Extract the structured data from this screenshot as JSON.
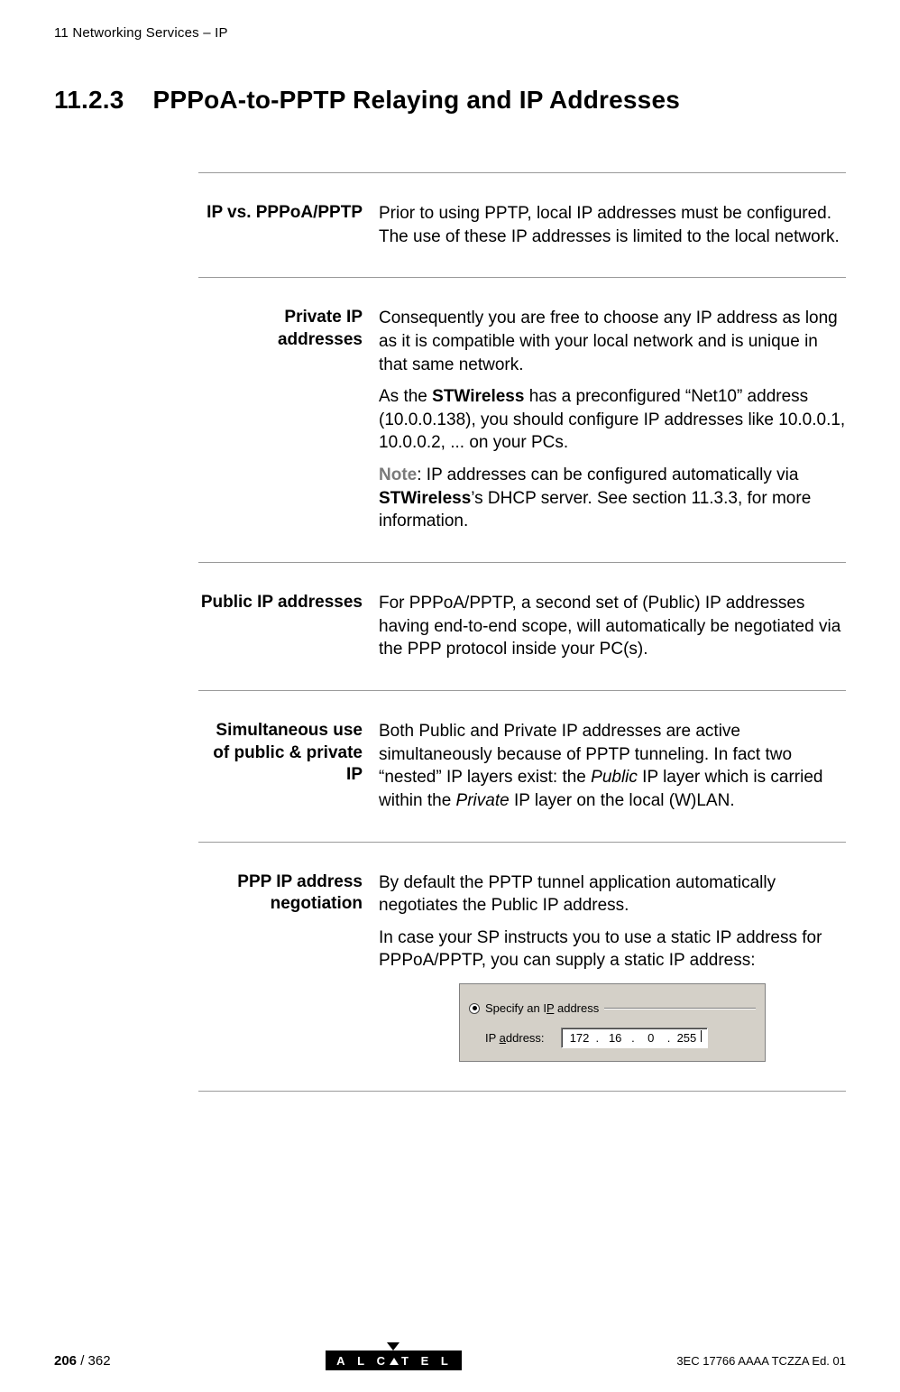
{
  "running_head": "11 Networking Services – IP",
  "heading": {
    "number": "11.2.3",
    "title": "PPPoA-to-PPTP Relaying and IP Addresses"
  },
  "blocks": [
    {
      "label": "IP vs. PPPoA/PPTP",
      "paras": [
        {
          "runs": [
            {
              "t": "Prior to using PPTP, local IP addresses must be configured. The use of these IP addresses is limited to the local network."
            }
          ]
        }
      ]
    },
    {
      "label": "Private IP addresses",
      "paras": [
        {
          "runs": [
            {
              "t": "Consequently you are free to choose any IP address as long as it is compatible with your local network and is unique in that same network."
            }
          ]
        },
        {
          "runs": [
            {
              "t": "As the "
            },
            {
              "t": "STWireless",
              "bold": true
            },
            {
              "t": " has a preconfigured “Net10” address (10.0.0.138), you should configure IP addresses like 10.0.0.1, 10.0.0.2, ... on your PCs."
            }
          ]
        },
        {
          "runs": [
            {
              "t": "Note",
              "note": true
            },
            {
              "t": ": IP addresses can be configured automatically via "
            },
            {
              "t": "STWireless",
              "bold": true
            },
            {
              "t": "’s DHCP server. See section 11.3.3, for more information."
            }
          ]
        }
      ]
    },
    {
      "label": "Public IP addresses",
      "paras": [
        {
          "runs": [
            {
              "t": "For PPPoA/PPTP, a second set of (Public) IP addresses having end-to-end scope, will automatically be negotiated via the PPP protocol inside your PC(s)."
            }
          ]
        }
      ]
    },
    {
      "label": "Simultaneous use of public & private IP",
      "paras": [
        {
          "runs": [
            {
              "t": "Both Public and Private IP addresses are active simultaneously because of PPTP tunneling. In fact two “nested” IP layers exist: the "
            },
            {
              "t": "Public",
              "italic": true
            },
            {
              "t": " IP layer which is carried within the "
            },
            {
              "t": "Private",
              "italic": true
            },
            {
              "t": " IP layer on the local (W)LAN."
            }
          ]
        }
      ]
    },
    {
      "label": "PPP IP address negotiation",
      "paras": [
        {
          "runs": [
            {
              "t": "By default the PPTP tunnel application automatically negotiates the Public IP address."
            }
          ]
        },
        {
          "runs": [
            {
              "t": "In case your SP instructs you to use a static IP address for PPPoA/PPTP, you can supply a static IP address:"
            }
          ]
        }
      ],
      "dialog": {
        "radio_selected": true,
        "legend_pre": "Specify an I",
        "legend_ul": "P",
        "legend_post": " address",
        "row_label_pre": "IP ",
        "row_label_ul": "a",
        "row_label_post": "ddress:",
        "octets": [
          "172",
          "16",
          "0",
          "255"
        ]
      }
    }
  ],
  "footer": {
    "page_current": "206",
    "page_total": " / 362",
    "logo_text": "A L C   T E L",
    "doc_id": "3EC 17766 AAAA TCZZA Ed. 01"
  },
  "colors": {
    "rule": "#9a9a9a",
    "note_gray": "#7a7a7a",
    "dialog_bg": "#d4d0c8",
    "dialog_border": "#808080"
  }
}
